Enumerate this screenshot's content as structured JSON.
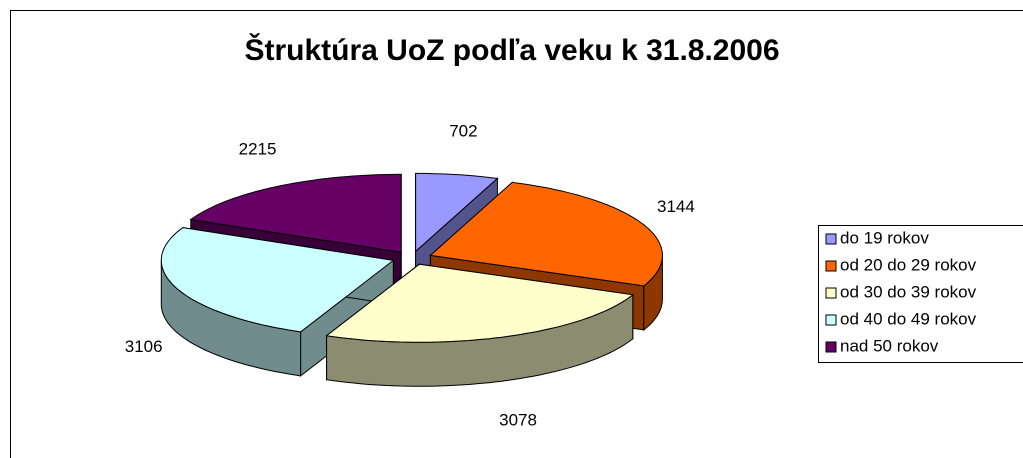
{
  "chart_data": {
    "type": "pie",
    "title": "Štruktúra UoZ podľa veku k 31.8.2006",
    "categories": [
      "do 19 rokov",
      "od 20 do 29 rokov",
      "od 30 do 39 rokov",
      "od 40 do 49 rokov",
      "nad 50 rokov"
    ],
    "values": [
      702,
      3144,
      3078,
      3106,
      2215
    ],
    "colors": [
      "#9999ff",
      "#ff6600",
      "#ffffcc",
      "#ccffff",
      "#660066"
    ],
    "legend": "right"
  }
}
